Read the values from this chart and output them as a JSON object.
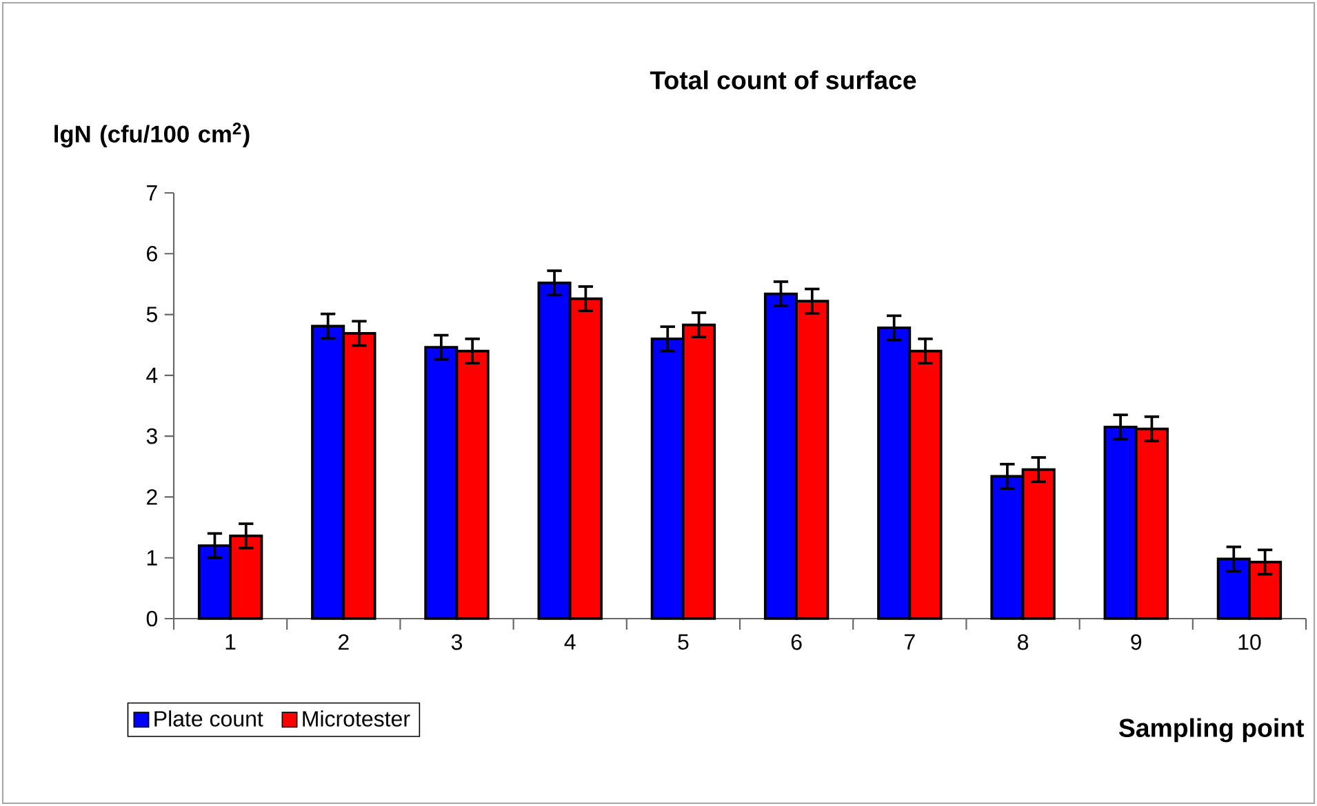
{
  "chart_data": {
    "type": "bar",
    "title": "Total count of surface",
    "xlabel": "Sampling point",
    "ylabel": "lgN (cfu/100 cm$^{2}$)",
    "categories": [
      "1",
      "2",
      "3",
      "4",
      "5",
      "6",
      "7",
      "8",
      "9",
      "10"
    ],
    "series": [
      {
        "name": "Plate count",
        "color": "#0000ff",
        "values": [
          1.2,
          4.81,
          4.46,
          5.52,
          4.6,
          5.34,
          4.78,
          2.34,
          3.15,
          0.98
        ],
        "errors": [
          0.2,
          0.2,
          0.2,
          0.2,
          0.2,
          0.2,
          0.2,
          0.2,
          0.2,
          0.2
        ]
      },
      {
        "name": "Microtester",
        "color": "#ff0000",
        "values": [
          1.36,
          4.69,
          4.4,
          5.26,
          4.83,
          5.22,
          4.4,
          2.45,
          3.12,
          0.93
        ],
        "errors": [
          0.2,
          0.2,
          0.2,
          0.2,
          0.2,
          0.2,
          0.2,
          0.2,
          0.2,
          0.2
        ]
      }
    ],
    "ylim": [
      0,
      7
    ],
    "yticks": [
      0,
      1,
      2,
      3,
      4,
      5,
      6,
      7
    ],
    "grid": false,
    "legend": "bottom left"
  }
}
